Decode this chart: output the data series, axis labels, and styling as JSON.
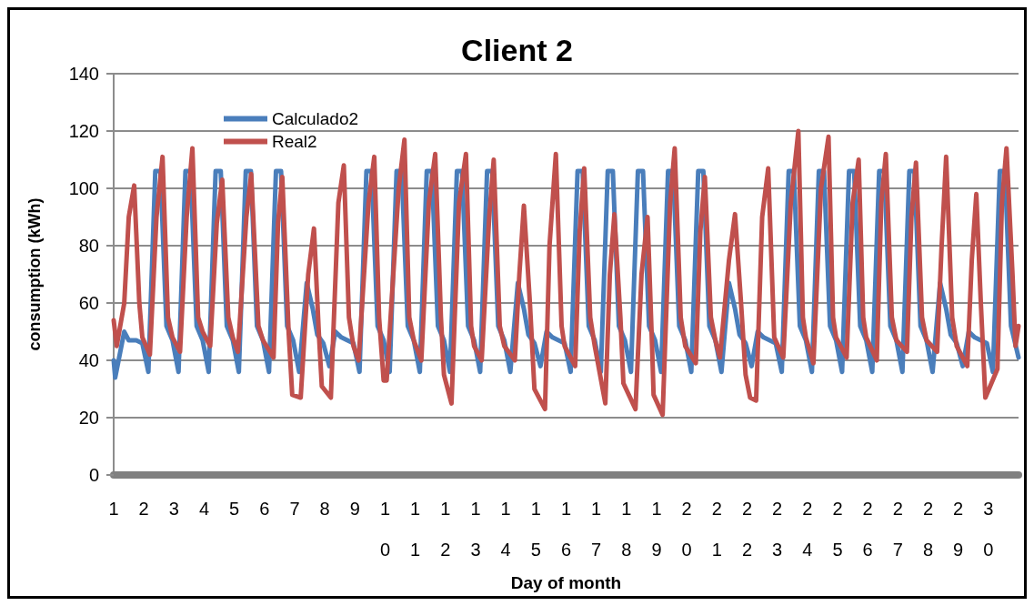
{
  "chart_data": {
    "type": "line",
    "title": "Client 2",
    "xlabel": "Day of month",
    "ylabel": "consumption (kWh)",
    "xlim": [
      1,
      31
    ],
    "xticks": [
      1,
      2,
      3,
      4,
      5,
      6,
      7,
      8,
      9,
      10,
      11,
      12,
      13,
      14,
      15,
      16,
      17,
      18,
      19,
      20,
      21,
      22,
      23,
      24,
      25,
      26,
      27,
      28,
      29,
      30
    ],
    "ylim": [
      0,
      140
    ],
    "yticks": [
      0,
      20,
      40,
      60,
      80,
      100,
      120,
      140
    ],
    "grid": "y",
    "legend": "top left",
    "marker": "none",
    "line_style": "solid",
    "series": [
      {
        "name": "Calculado2",
        "color": "#4a7ebb",
        "x": [
          1,
          1.05,
          1.35,
          1.5,
          1.75,
          1.95,
          2.15,
          2.38,
          2.55,
          2.75,
          2.95,
          3.15,
          3.38,
          3.55,
          3.75,
          3.95,
          4.15,
          4.38,
          4.55,
          4.75,
          4.95,
          5.15,
          5.38,
          5.55,
          5.75,
          5.95,
          6.15,
          6.38,
          6.55,
          6.75,
          6.95,
          7.15,
          7.4,
          7.6,
          7.75,
          7.95,
          8.15,
          8.35,
          8.55,
          8.75,
          8.95,
          9.15,
          9.38,
          9.55,
          9.75,
          9.95,
          10.15,
          10.38,
          10.55,
          10.75,
          10.95,
          11.15,
          11.38,
          11.55,
          11.75,
          11.95,
          12.15,
          12.38,
          12.55,
          12.75,
          12.95,
          13.15,
          13.38,
          13.55,
          13.75,
          13.95,
          14.15,
          14.4,
          14.6,
          14.75,
          14.95,
          15.15,
          15.35,
          15.55,
          15.75,
          15.95,
          16.15,
          16.38,
          16.55,
          16.75,
          16.95,
          17.15,
          17.38,
          17.55,
          17.75,
          17.95,
          18.15,
          18.38,
          18.55,
          18.75,
          18.95,
          19.15,
          19.38,
          19.55,
          19.75,
          19.95,
          20.15,
          20.38,
          20.55,
          20.75,
          20.95,
          21.15,
          21.4,
          21.6,
          21.75,
          21.95,
          22.15,
          22.35,
          22.55,
          22.75,
          22.95,
          23.15,
          23.38,
          23.55,
          23.75,
          23.95,
          24.15,
          24.38,
          24.55,
          24.75,
          24.95,
          25.15,
          25.38,
          25.55,
          25.75,
          25.95,
          26.15,
          26.38,
          26.55,
          26.75,
          26.95,
          27.15,
          27.38,
          27.55,
          27.75,
          27.95,
          28.15,
          28.4,
          28.6,
          28.75,
          28.95,
          29.15,
          29.35,
          29.55,
          29.75,
          29.95,
          30.15,
          30.38,
          30.55,
          30.75,
          31
        ],
        "values": [
          40,
          34,
          50,
          47,
          47,
          46,
          36,
          106,
          106,
          52,
          47,
          36,
          106,
          106,
          52,
          47,
          36,
          106,
          106,
          52,
          47,
          36,
          106,
          106,
          52,
          47,
          36,
          106,
          106,
          52,
          47,
          36,
          67,
          58,
          49,
          46,
          38,
          50,
          48,
          47,
          46,
          36,
          106,
          106,
          52,
          47,
          36,
          106,
          106,
          52,
          47,
          36,
          106,
          106,
          52,
          47,
          36,
          106,
          106,
          52,
          47,
          36,
          106,
          106,
          52,
          47,
          36,
          67,
          58,
          49,
          46,
          38,
          50,
          48,
          47,
          46,
          36,
          106,
          106,
          52,
          47,
          36,
          106,
          106,
          52,
          47,
          36,
          106,
          106,
          52,
          47,
          36,
          106,
          106,
          52,
          47,
          36,
          106,
          106,
          52,
          47,
          36,
          67,
          58,
          49,
          46,
          38,
          50,
          48,
          47,
          46,
          36,
          106,
          106,
          52,
          47,
          36,
          106,
          106,
          52,
          47,
          36,
          106,
          106,
          52,
          47,
          36,
          106,
          106,
          52,
          47,
          36,
          106,
          106,
          52,
          47,
          36,
          67,
          58,
          49,
          46,
          38,
          50,
          48,
          47,
          46,
          36,
          106,
          106,
          52,
          41
        ]
      },
      {
        "name": "Real2",
        "color": "#c0504d",
        "x": [
          1,
          1.1,
          1.35,
          1.5,
          1.68,
          1.85,
          1.95,
          2.2,
          2.42,
          2.62,
          2.8,
          2.95,
          3.2,
          3.42,
          3.61,
          3.8,
          3.95,
          4.2,
          4.42,
          4.6,
          4.8,
          4.95,
          5.12,
          5.4,
          5.56,
          5.8,
          5.95,
          6.3,
          6.45,
          6.59,
          6.8,
          6.92,
          7.2,
          7.45,
          7.64,
          7.8,
          7.9,
          8.2,
          8.45,
          8.63,
          8.8,
          8.95,
          9.12,
          9.45,
          9.64,
          9.8,
          9.95,
          10.05,
          10.45,
          10.64,
          10.8,
          10.95,
          11.2,
          11.45,
          11.66,
          11.85,
          11.95,
          12.2,
          12.45,
          12.68,
          12.85,
          12.95,
          13.2,
          13.45,
          13.6,
          13.8,
          13.95,
          14.3,
          14.45,
          14.6,
          14.8,
          14.95,
          15.3,
          15.45,
          15.66,
          15.85,
          15.95,
          16.3,
          16.45,
          16.6,
          16.8,
          16.95,
          17.3,
          17.45,
          17.6,
          17.8,
          17.9,
          18.3,
          18.5,
          18.7,
          18.85,
          18.9,
          19.2,
          19.45,
          19.6,
          19.8,
          19.95,
          20.3,
          20.45,
          20.6,
          20.8,
          20.95,
          21.1,
          21.4,
          21.6,
          21.8,
          21.95,
          22.1,
          22.3,
          22.5,
          22.7,
          22.9,
          23.2,
          23.45,
          23.7,
          23.85,
          23.95,
          24.2,
          24.45,
          24.7,
          24.85,
          24.95,
          25.3,
          25.5,
          25.7,
          25.85,
          25.95,
          26.3,
          26.45,
          26.6,
          26.8,
          26.95,
          27.3,
          27.45,
          27.6,
          27.8,
          27.95,
          28.3,
          28.45,
          28.6,
          28.8,
          28.95,
          29.3,
          29.45,
          29.6,
          29.75,
          29.9,
          30.3,
          30.45,
          30.6,
          30.8,
          30.9,
          31
        ],
        "values": [
          54,
          45,
          60,
          90,
          101,
          60,
          48,
          42,
          90,
          111,
          55,
          48,
          43,
          90,
          114,
          55,
          50,
          45,
          88,
          103,
          55,
          48,
          43,
          90,
          105,
          52,
          47,
          41,
          88,
          104,
          50,
          28,
          27,
          70,
          86,
          50,
          31,
          27,
          95,
          108,
          55,
          45,
          40,
          95,
          111,
          55,
          33,
          33,
          100,
          117,
          55,
          47,
          40,
          95,
          112,
          55,
          35,
          25,
          95,
          112,
          52,
          45,
          40,
          90,
          110,
          52,
          45,
          40,
          70,
          94,
          60,
          30,
          23,
          80,
          112,
          52,
          45,
          38,
          85,
          107,
          55,
          45,
          25,
          70,
          91,
          55,
          32,
          23,
          70,
          90,
          45,
          28,
          21,
          95,
          114,
          55,
          45,
          39,
          85,
          104,
          55,
          47,
          41,
          75,
          91,
          60,
          35,
          27,
          26,
          90,
          107,
          48,
          41,
          95,
          120,
          55,
          48,
          39,
          100,
          118,
          55,
          48,
          41,
          95,
          110,
          55,
          48,
          40,
          95,
          112,
          55,
          47,
          43,
          90,
          109,
          55,
          47,
          43,
          80,
          111,
          55,
          45,
          38,
          75,
          98,
          60,
          27,
          37,
          95,
          114,
          70,
          45,
          52
        ]
      }
    ]
  }
}
